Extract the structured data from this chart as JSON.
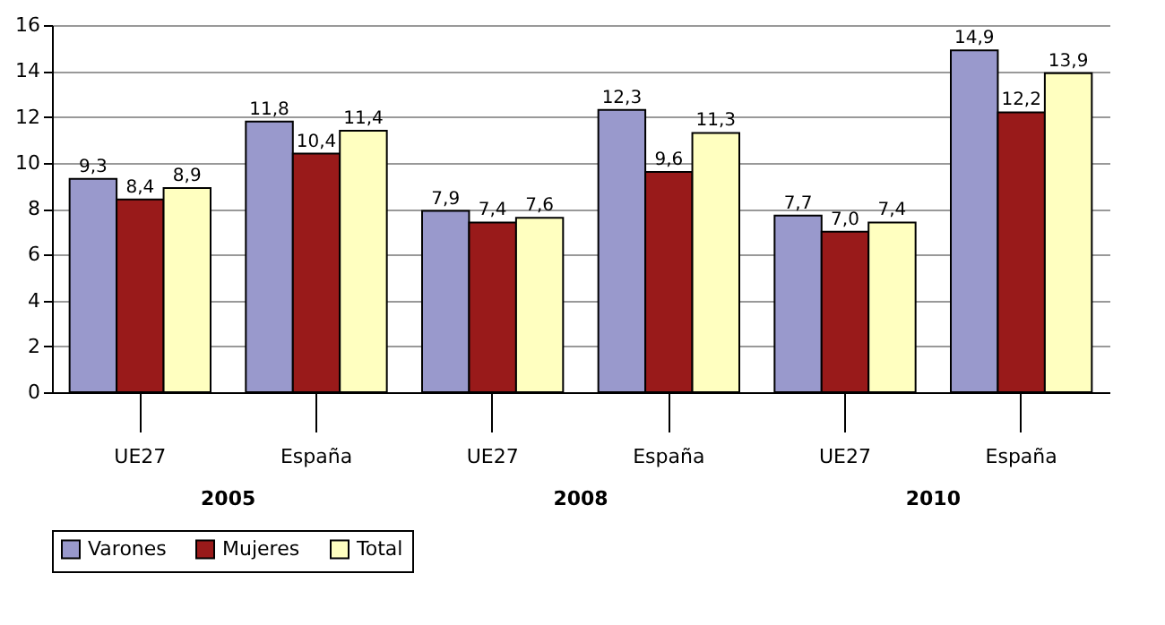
{
  "chart_data": {
    "type": "bar",
    "categories": [
      "UE27",
      "España",
      "UE27",
      "España",
      "UE27",
      "España"
    ],
    "series": [
      {
        "name": "Varones",
        "color": "#9999cc",
        "values": [
          9.3,
          11.8,
          7.9,
          12.3,
          7.7,
          14.9
        ],
        "value_labels": [
          "9,3",
          "11,8",
          "7,9",
          "12,3",
          "7,7",
          "14,9"
        ]
      },
      {
        "name": "Mujeres",
        "color": "#991a1a",
        "values": [
          8.4,
          10.4,
          7.4,
          9.6,
          7.0,
          12.2
        ],
        "value_labels": [
          "8,4",
          "10,4",
          "7,4",
          "9,6",
          "7,0",
          "12,2"
        ]
      },
      {
        "name": "Total",
        "color": "#ffffc0",
        "values": [
          8.9,
          11.4,
          7.6,
          11.3,
          7.4,
          13.9
        ],
        "value_labels": [
          "8,9",
          "11,4",
          "7,6",
          "11,3",
          "7,4",
          "13,9"
        ]
      }
    ],
    "annotations": [
      "2005",
      "2008",
      "2010"
    ],
    "ylim": [
      0,
      16
    ],
    "yticks": [
      0,
      2,
      4,
      6,
      8,
      10,
      12,
      14,
      16
    ],
    "grid": "y",
    "legend": "bottom"
  }
}
